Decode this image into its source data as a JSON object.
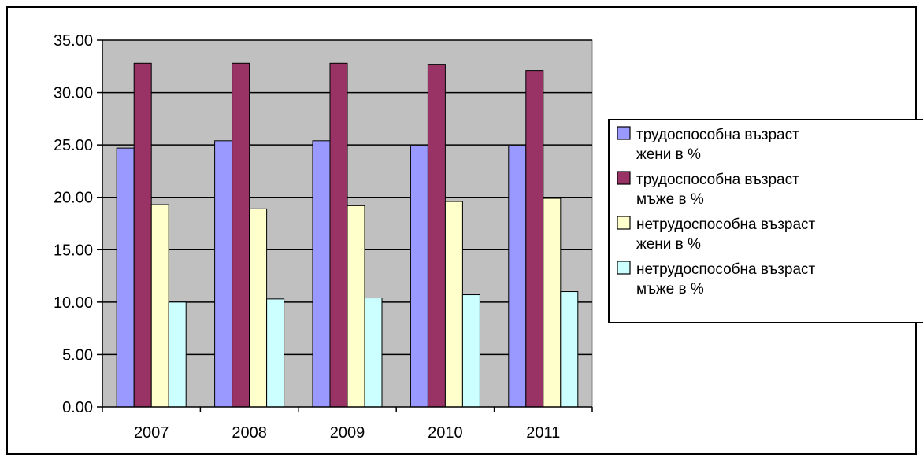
{
  "chart_data": {
    "type": "bar",
    "categories": [
      "2007",
      "2008",
      "2009",
      "2010",
      "2011"
    ],
    "series": [
      {
        "name": "трудоспособна възраст жени в %",
        "legend_lines": [
          "трудоспособна възраст",
          "жени в %"
        ],
        "color": "#9999FF",
        "values": [
          24.7,
          25.4,
          25.4,
          24.9,
          24.9
        ]
      },
      {
        "name": "трудоспособна възраст мъже в %",
        "legend_lines": [
          "трудоспособна възраст",
          "мъже в %"
        ],
        "color": "#993366",
        "values": [
          32.8,
          32.8,
          32.8,
          32.7,
          32.1
        ]
      },
      {
        "name": "нетрудоспособна възраст жени в %",
        "legend_lines": [
          "нетрудоспособна възраст",
          "жени в %"
        ],
        "color": "#FFFFCC",
        "values": [
          19.3,
          18.9,
          19.2,
          19.6,
          19.9
        ]
      },
      {
        "name": "нетрудоспособна възраст мъже в %",
        "legend_lines": [
          "нетрудоспособна възраст",
          "мъже в %"
        ],
        "color": "#CCFFFF",
        "values": [
          10.0,
          10.3,
          10.4,
          10.7,
          11.0
        ]
      }
    ],
    "y_ticks": [
      "0.00",
      "5.00",
      "10.00",
      "15.00",
      "20.00",
      "25.00",
      "30.00",
      "35.00"
    ],
    "ylim": [
      0,
      35
    ],
    "grid": true,
    "plot_background": "#C0C0C0",
    "legend_position": "right"
  }
}
